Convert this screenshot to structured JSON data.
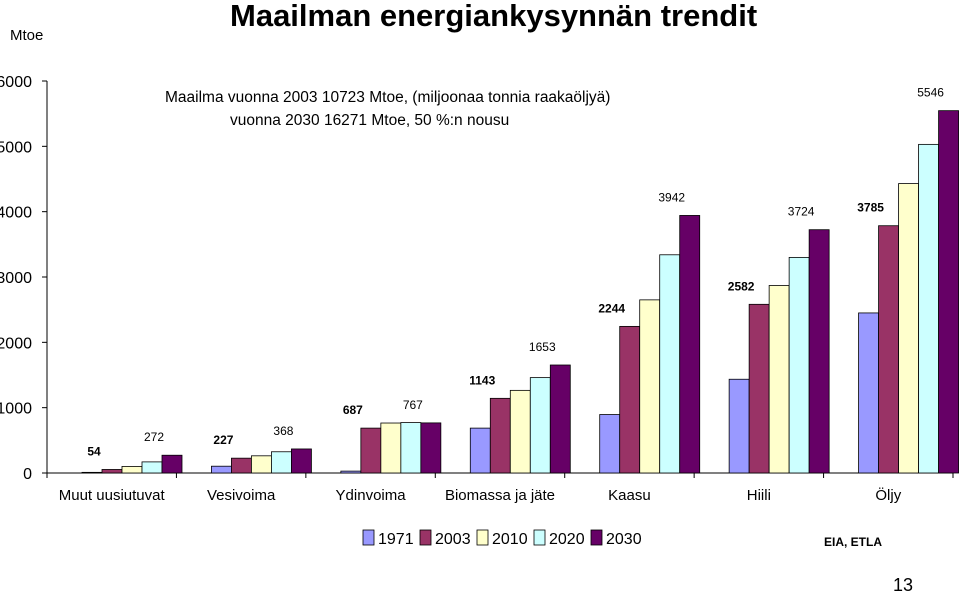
{
  "slide": {
    "title": "Maailman energiankysynnän trendit",
    "unit": "Mtoe",
    "note_line1": "Maailma vuonna 2003 10723 Mtoe, (miljoonaa tonnia raakaöljyä)",
    "note_line2": "vuonna 2030 16271 Mtoe,  50 %:n nousu",
    "source": "EIA, ETLA",
    "page_number": "13"
  },
  "chart_data": {
    "type": "bar",
    "title": "Maailman energiankysynnän trendit",
    "ylabel": "Mtoe",
    "xlabel": "",
    "ylim": [
      0,
      6000
    ],
    "yticks": [
      0,
      1000,
      2000,
      3000,
      4000,
      5000,
      6000
    ],
    "grid": false,
    "legend_position": "bottom",
    "categories": [
      "Muut uusiutuvat",
      "Vesivoima",
      "Ydinvoima",
      "Biomassa ja jäte",
      "Kaasu",
      "Hiili",
      "Öljy"
    ],
    "series": [
      {
        "name": "1971",
        "color": "#9999FF",
        "values": [
          10,
          104,
          29,
          687,
          895,
          1435,
          2450
        ]
      },
      {
        "name": "2003",
        "color": "#993366",
        "values": [
          54,
          227,
          687,
          1143,
          2244,
          2582,
          3785
        ]
      },
      {
        "name": "2010",
        "color": "#FFFFCC",
        "values": [
          101,
          263,
          765,
          1265,
          2650,
          2870,
          4430
        ]
      },
      {
        "name": "2020",
        "color": "#CCFFFF",
        "values": [
          170,
          325,
          772,
          1460,
          3340,
          3300,
          5030
        ]
      },
      {
        "name": "2030",
        "color": "#660066",
        "values": [
          272,
          368,
          767,
          1653,
          3942,
          3724,
          5546
        ]
      }
    ],
    "data_labels": [
      {
        "category": "Muut uusiutuvat",
        "series": "2003",
        "text": "54",
        "bold": true
      },
      {
        "category": "Muut uusiutuvat",
        "series": "2030",
        "text": "272",
        "bold": false
      },
      {
        "category": "Vesivoima",
        "series": "2003",
        "text": "227",
        "bold": true
      },
      {
        "category": "Vesivoima",
        "series": "2030",
        "text": "368",
        "bold": false
      },
      {
        "category": "Ydinvoima",
        "series": "2003",
        "text": "687",
        "bold": true
      },
      {
        "category": "Ydinvoima",
        "series": "2030",
        "text": "767",
        "bold": false
      },
      {
        "category": "Biomassa ja jäte",
        "series": "2003",
        "text": "1143",
        "bold": true
      },
      {
        "category": "Biomassa ja jäte",
        "series": "2030",
        "text": "1653",
        "bold": false
      },
      {
        "category": "Kaasu",
        "series": "2003",
        "text": "2244",
        "bold": true
      },
      {
        "category": "Kaasu",
        "series": "2030",
        "text": "3942",
        "bold": false
      },
      {
        "category": "Hiili",
        "series": "2003",
        "text": "2582",
        "bold": true
      },
      {
        "category": "Hiili",
        "series": "2030",
        "text": "3724",
        "bold": false
      },
      {
        "category": "Öljy",
        "series": "2003",
        "text": "3785",
        "bold": true
      },
      {
        "category": "Öljy",
        "series": "2030",
        "text": "5546",
        "bold": false
      }
    ]
  }
}
